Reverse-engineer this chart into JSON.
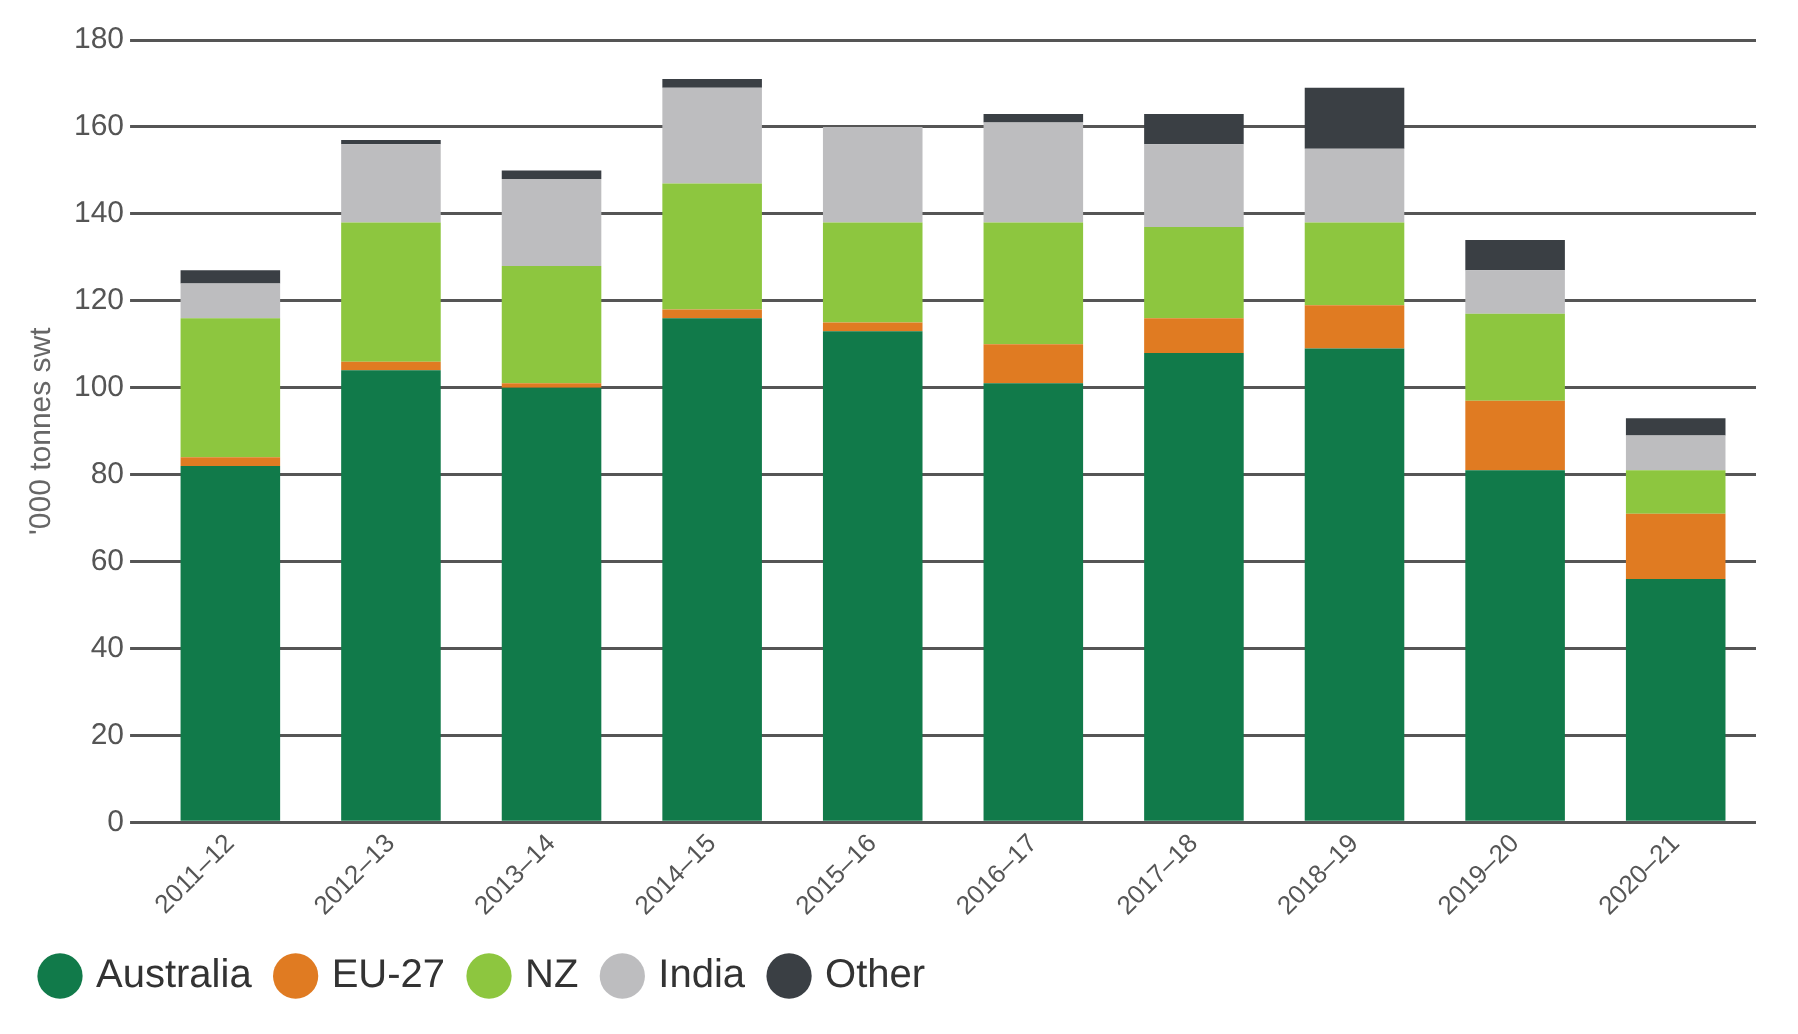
{
  "chart_data": {
    "type": "bar",
    "stacked": true,
    "ylabel": "'000 tonnes swt",
    "categories": [
      "2011–12",
      "2012–13",
      "2013–14",
      "2014–15",
      "2015–16",
      "2016–17",
      "2017–18",
      "2018–19",
      "2019–20",
      "2020–21"
    ],
    "series": [
      {
        "name": "Australia",
        "color": "#117a4a",
        "values": [
          82,
          104,
          100,
          116,
          113,
          101,
          108,
          109,
          81,
          56
        ]
      },
      {
        "name": "EU-27",
        "color": "#e07b22",
        "values": [
          2,
          2,
          1,
          2,
          2,
          9,
          8,
          10,
          16,
          15
        ]
      },
      {
        "name": "NZ",
        "color": "#8dc63f",
        "values": [
          32,
          32,
          27,
          29,
          23,
          28,
          21,
          19,
          20,
          10
        ]
      },
      {
        "name": "India",
        "color": "#bdbdbf",
        "values": [
          8,
          18,
          20,
          22,
          22,
          23,
          19,
          17,
          10,
          8
        ]
      },
      {
        "name": "Other",
        "color": "#3a3f44",
        "values": [
          3,
          1,
          2,
          2,
          0,
          2,
          7,
          14,
          7,
          4
        ]
      }
    ],
    "ylim": [
      0,
      180
    ],
    "yticks": [
      0,
      20,
      40,
      60,
      80,
      100,
      120,
      140,
      160,
      180
    ],
    "grid": "y",
    "legend": "bottom left"
  }
}
